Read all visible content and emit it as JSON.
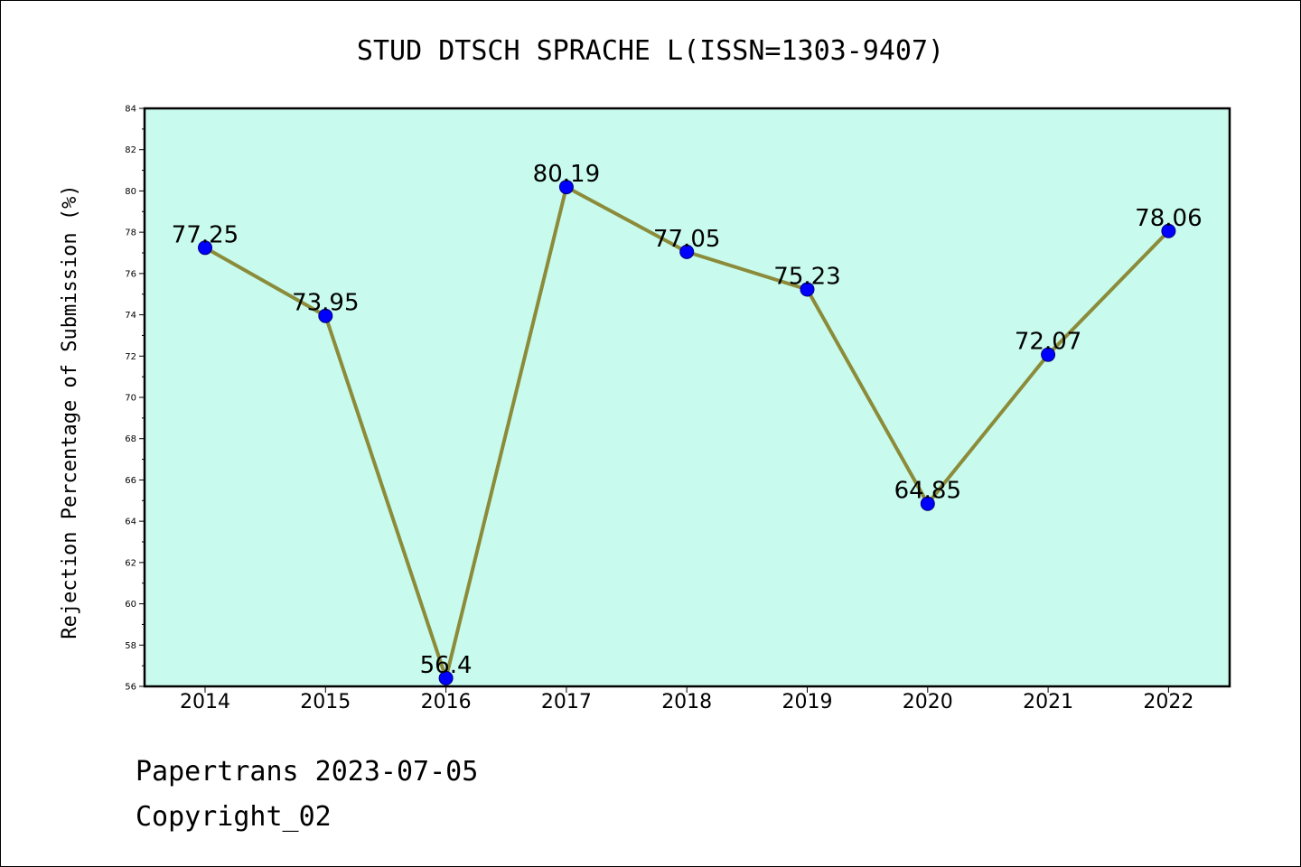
{
  "chart_data": {
    "type": "line",
    "title": "STUD DTSCH SPRACHE L(ISSN=1303-9407)",
    "ylabel": "Rejection Percentage of Submission (%)",
    "xlabel": "",
    "categories": [
      "2014",
      "2015",
      "2016",
      "2017",
      "2018",
      "2019",
      "2020",
      "2021",
      "2022"
    ],
    "series": [
      {
        "values": [
          77.25,
          73.95,
          56.4,
          80.19,
          77.05,
          75.23,
          64.85,
          72.07,
          78.06
        ],
        "labels": [
          "77.25",
          "73.95",
          "56.4",
          "80.19",
          "77.05",
          "75.23",
          "64.85",
          "72.07",
          "78.06"
        ]
      }
    ],
    "ylim": [
      56,
      84
    ],
    "yticks": [
      "56",
      "58",
      "60",
      "62",
      "64",
      "66",
      "68",
      "70",
      "72",
      "74",
      "76",
      "78",
      "80",
      "82",
      "84"
    ],
    "grid": false,
    "colors": {
      "plot_background": "#c8fbed",
      "line": "#8b8b3a",
      "marker": "#0000ff"
    }
  },
  "footer": {
    "line1": "Papertrans 2023-07-05",
    "line2": "Copyright_02"
  }
}
